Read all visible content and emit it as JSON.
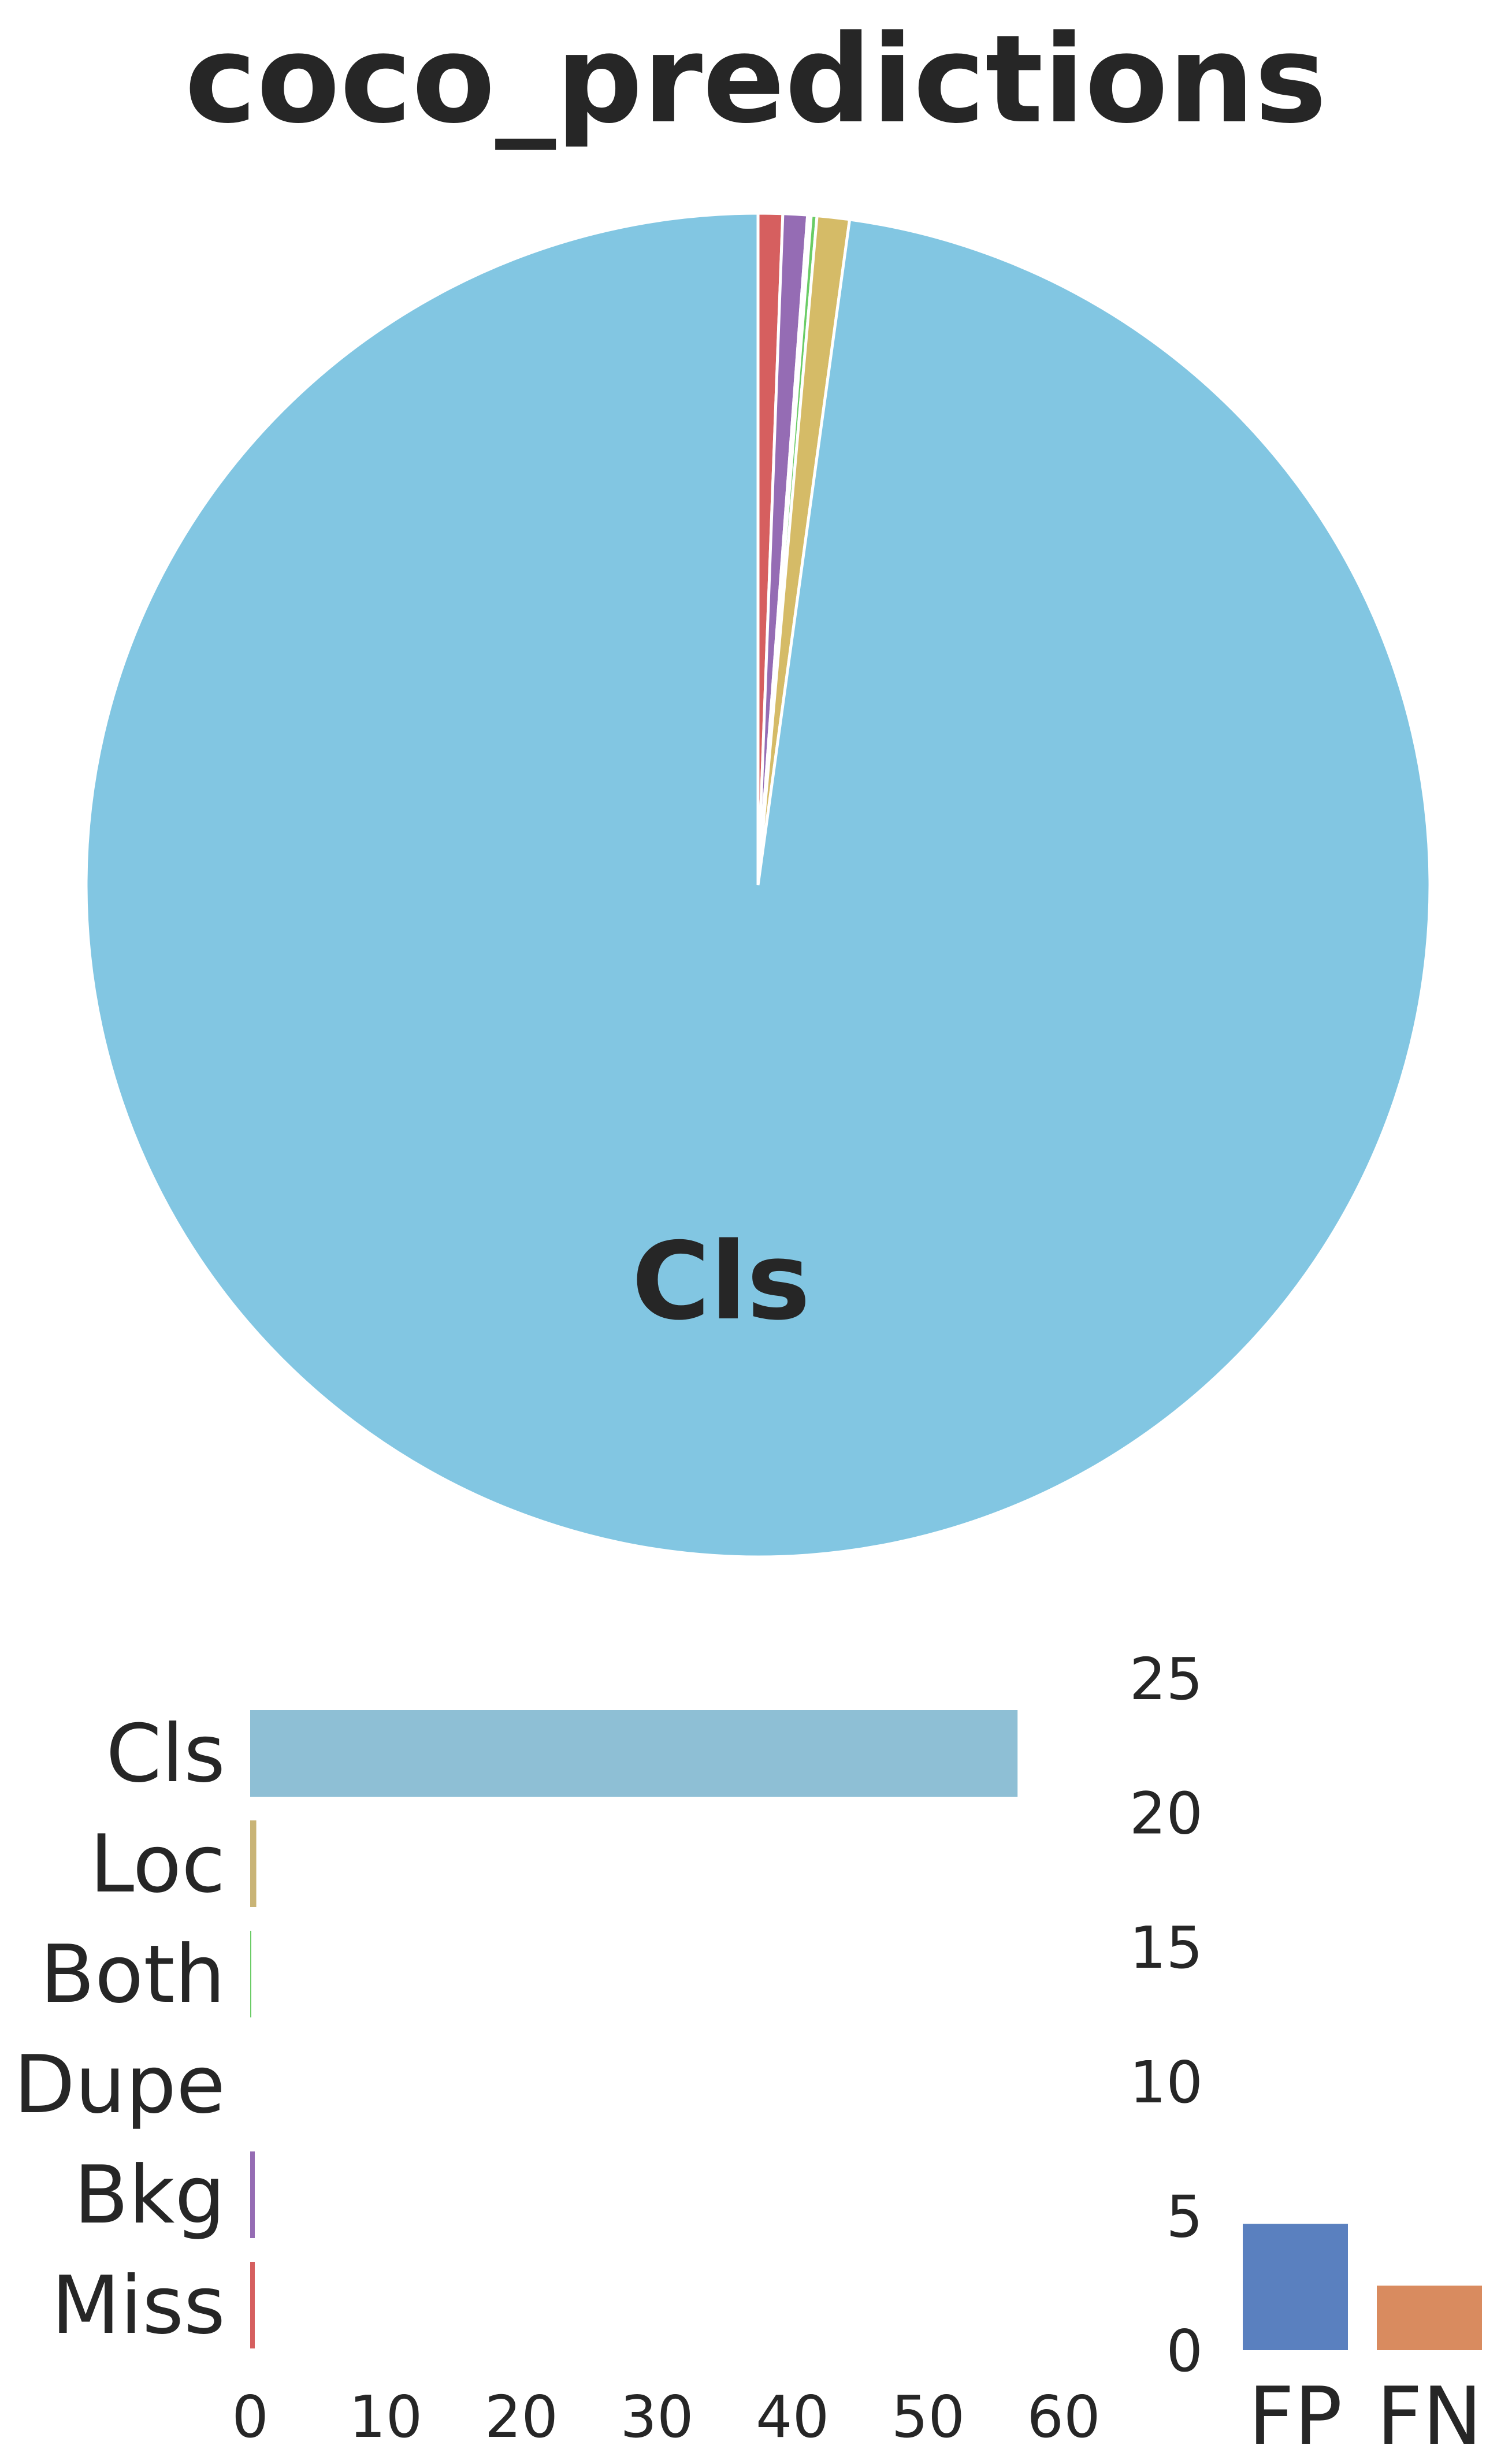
{
  "chart_data": [
    {
      "type": "pie",
      "title": "coco_predictions",
      "slices": [
        {
          "name": "Miss",
          "value": 0.34,
          "color": "#d65f5f"
        },
        {
          "name": "Bkg",
          "value": 0.34,
          "color": "#956cb4"
        },
        {
          "name": "Dupe",
          "value": 0.05,
          "color": "#ffffff"
        },
        {
          "name": "Both",
          "value": 0.08,
          "color": "#6acc65"
        },
        {
          "name": "Loc",
          "value": 0.45,
          "color": "#d5bb67"
        },
        {
          "name": "Cls",
          "value": 56.6,
          "color": "#82c6e2"
        }
      ],
      "label": "Cls"
    },
    {
      "type": "bar",
      "orientation": "horizontal",
      "categories": [
        "Cls",
        "Loc",
        "Both",
        "Dupe",
        "Bkg",
        "Miss"
      ],
      "values": [
        56.6,
        0.45,
        0.08,
        0.05,
        0.34,
        0.34
      ],
      "colors": [
        "#8ebfd5",
        "#c9b476",
        "#6acc65",
        "#ffffff",
        "#956cb4",
        "#d65f5f"
      ],
      "xlim": [
        0,
        60
      ],
      "xticks": [
        "0",
        "10",
        "20",
        "30",
        "40",
        "50",
        "60"
      ]
    },
    {
      "type": "bar",
      "categories": [
        "FP",
        "FN"
      ],
      "values": [
        4.7,
        2.4
      ],
      "colors": [
        "#5a80bf",
        "#d98b5f"
      ],
      "ylim": [
        0,
        25
      ],
      "yticks": [
        "0",
        "5",
        "10",
        "15",
        "20",
        "25"
      ]
    }
  ]
}
